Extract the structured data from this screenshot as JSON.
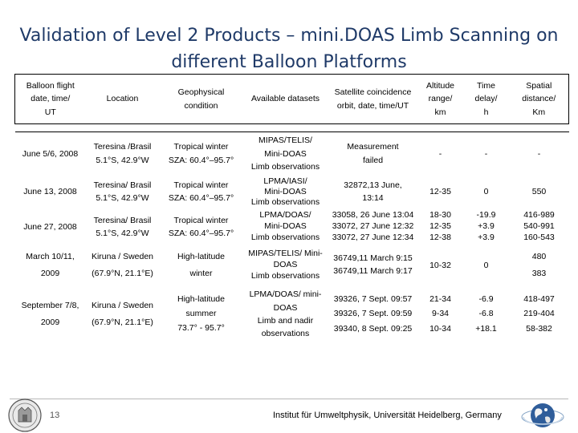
{
  "slide": {
    "title": "Validation of Level 2 Products – mini.DOAS Limb Scanning on different Balloon Platforms",
    "page_number": "13",
    "institute": "Institut für Umweltphysik, Universität Heidelberg, Germany",
    "title_color": "#1f3a68"
  },
  "table": {
    "headers": [
      [
        "Balloon flight",
        "date, time/",
        "UT"
      ],
      [
        "Location"
      ],
      [
        "Geophysical",
        "condition"
      ],
      [
        "Available datasets"
      ],
      [
        "Satellite coincidence",
        "orbit, date, time/UT"
      ],
      [
        "Altitude",
        "range/",
        "km"
      ],
      [
        "Time",
        "delay/",
        "h"
      ],
      [
        "Spatial",
        "distance/",
        "Km"
      ]
    ],
    "rows": [
      {
        "date": [
          "June 5/6,  2008"
        ],
        "location": [
          "Teresina /Brasil",
          "5.1°S, 42.9°W"
        ],
        "condition": [
          "Tropical winter",
          "SZA: 60.4°–95.7°"
        ],
        "datasets": [
          "MIPAS/TELIS/",
          "Mini-DOAS",
          "Limb observations"
        ],
        "satellite": [
          "Measurement",
          "failed"
        ],
        "altitude": [
          "-"
        ],
        "delay": [
          "-"
        ],
        "distance": [
          "-"
        ]
      },
      {
        "date": [
          "June 13,  2008"
        ],
        "location": [
          "Teresina/ Brasil",
          "5.1°S, 42.9°W"
        ],
        "condition": [
          "Tropical winter",
          "SZA: 60.4°–95.7°"
        ],
        "datasets": [
          "LPMA/IASI/",
          "Mini-DOAS",
          "Limb observations"
        ],
        "satellite": [
          "32872,13 June,",
          "13:14"
        ],
        "altitude": [
          "12-35"
        ],
        "delay": [
          "0"
        ],
        "distance": [
          "550"
        ]
      },
      {
        "date": [
          "June 27,  2008"
        ],
        "location": [
          "Teresina/ Brasil",
          "5.1°S, 42.9°W"
        ],
        "condition": [
          "Tropical winter",
          "SZA: 60.4°–95.7°"
        ],
        "datasets": [
          "LPMA/DOAS/",
          "Mini-DOAS",
          "Limb observations"
        ],
        "satellite": [
          "33058, 26 June 13:04",
          "33072, 27 June 12:32",
          "33072, 27 June 12:34"
        ],
        "altitude": [
          "18-30",
          "12-35",
          "12-38"
        ],
        "delay": [
          "-19.9",
          "+3.9",
          "+3.9"
        ],
        "distance": [
          "416-989",
          "540-991",
          "160-543"
        ]
      },
      {
        "date": [
          "March 10/11,",
          "2009"
        ],
        "location": [
          "Kiruna / Sweden",
          "(67.9°N, 21.1°E)"
        ],
        "condition": [
          "High-latitude",
          "winter"
        ],
        "datasets": [
          "MIPAS/TELIS/ Mini-",
          "DOAS",
          "Limb observations"
        ],
        "satellite": [
          "36749,11 March 9:15",
          "36749,11 March 9:17"
        ],
        "altitude": [
          "10-32"
        ],
        "delay": [
          "0"
        ],
        "distance": [
          "480",
          "383"
        ]
      },
      {
        "date": [
          "September 7/8,",
          "2009"
        ],
        "location": [
          "Kiruna / Sweden",
          "(67.9°N, 21.1°E)"
        ],
        "condition": [
          "High-latitude",
          "summer",
          "73.7° - 95.7°"
        ],
        "datasets": [
          "LPMA/DOAS/ mini-",
          "DOAS",
          "Limb and nadir",
          "observations"
        ],
        "satellite": [
          "39326, 7 Sept. 09:57",
          "39326, 7 Sept. 09:59",
          "39340, 8 Sept. 09:25"
        ],
        "altitude": [
          "21-34",
          "9-34",
          "10-34"
        ],
        "delay": [
          "-6.9",
          "-6.8",
          "+18.1"
        ],
        "distance": [
          "418-497",
          "219-404",
          "58-382"
        ]
      }
    ]
  },
  "icons": {
    "seal": "university-seal-icon",
    "globe": "globe-logo-icon"
  }
}
